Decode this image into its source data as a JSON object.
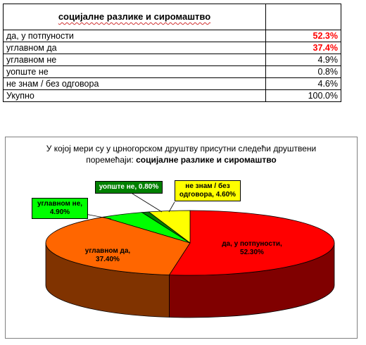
{
  "table": {
    "title": "социјалне разлике и сиромаштво",
    "rows": [
      {
        "label": "да, у потпуности",
        "value": "52.3%"
      },
      {
        "label": "углавном да",
        "value": "37.4%"
      },
      {
        "label": "углавном не",
        "value": "4.9%"
      },
      {
        "label": "уопште не",
        "value": "0.8%"
      },
      {
        "label": "не знам / без одговора",
        "value": "4.6%"
      },
      {
        "label": "Укупно",
        "value": "100.0%"
      }
    ]
  },
  "chart_data": {
    "type": "pie",
    "title_line1": "У којој мери су у црногорском друштву присутни следећи друштвени",
    "title_line2_prefix": "поремећаји: ",
    "title_line2_bold": "социјалне разлике и сиромаштво",
    "slices": [
      {
        "label_line1": "да, у потпуности,",
        "label_line2": "52.30%",
        "value": 52.3,
        "color": "#ff0000",
        "side_color": "#800000"
      },
      {
        "label_line1": "углавном да,",
        "label_line2": "37.40%",
        "value": 37.4,
        "color": "#ff6600",
        "side_color": "#803300"
      },
      {
        "label_line1": "углавном не,",
        "label_line2": "4.90%",
        "value": 4.9,
        "color": "#00ff00",
        "side_color": "#008000"
      },
      {
        "label_line1": "уопште не, 0.80%",
        "label_line2": "",
        "value": 0.8,
        "color": "#008000",
        "side_color": "#004000"
      },
      {
        "label_line1": "не знам / без",
        "label_line2": "одговора, 4.60%",
        "value": 4.6,
        "color": "#ffff00",
        "side_color": "#808000"
      }
    ],
    "legend": "none"
  }
}
